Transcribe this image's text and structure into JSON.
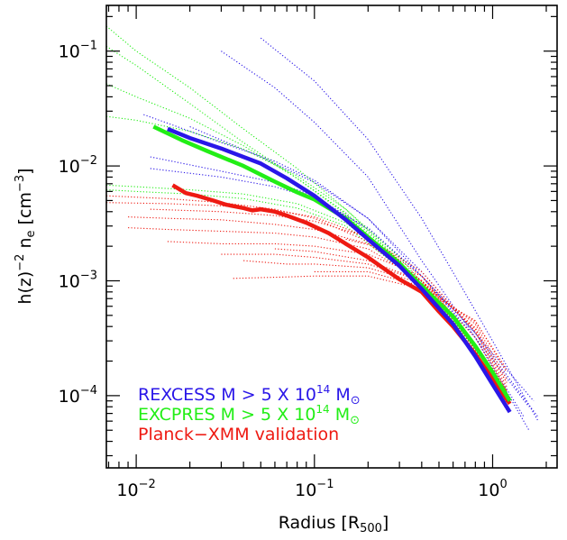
{
  "chart_data": {
    "type": "line",
    "title": "",
    "xlabel": "Radius [R",
    "xlabel_sub": "500",
    "xlabel_close": "]",
    "ylabel_prefix": "h(z)",
    "ylabel_sup": "−2",
    "ylabel_mid": " n",
    "ylabel_sub": "e",
    "ylabel_unit": " [cm",
    "ylabel_unit_sup": "−3",
    "ylabel_close": "]",
    "xscale": "log",
    "yscale": "log",
    "xlim": [
      0.0068,
      2.3
    ],
    "ylim": [
      2.35e-05,
      0.25
    ],
    "grid": false,
    "legend_position": "bottom-left",
    "x_ticks": [
      {
        "value": 0.01,
        "base": "10",
        "exp": "−2"
      },
      {
        "value": 0.1,
        "base": "10",
        "exp": "−1"
      },
      {
        "value": 1,
        "base": "10",
        "exp": "0"
      }
    ],
    "y_ticks": [
      {
        "value": 0.1,
        "base": "10",
        "exp": "−1"
      },
      {
        "value": 0.01,
        "base": "10",
        "exp": "−2"
      },
      {
        "value": 0.001,
        "base": "10",
        "exp": "−3"
      },
      {
        "value": 0.0001,
        "base": "10",
        "exp": "−4"
      }
    ],
    "legend": [
      {
        "label": "REXCESS M > 5 X 10",
        "sup": "14",
        "tail": " M",
        "sym": "⊙",
        "color": "#2a16e8"
      },
      {
        "label": "EXCPRES M > 5 X 10",
        "sup": "14",
        "tail": " M",
        "sym": "⊙",
        "color": "#22ee16"
      },
      {
        "label": "Planck−XMM validation",
        "sup": "",
        "tail": "",
        "sym": "",
        "color": "#ee1a12"
      }
    ],
    "series": [
      {
        "name": "REXCESS M > 5 X 10^14 M⊙",
        "color": "#2a16e8",
        "style": "solid",
        "x": [
          0.015,
          0.02,
          0.03,
          0.05,
          0.07,
          0.1,
          0.15,
          0.2,
          0.3,
          0.4,
          0.6,
          0.8,
          1.0,
          1.25
        ],
        "y": [
          0.021,
          0.0175,
          0.0142,
          0.0105,
          0.0078,
          0.0055,
          0.0034,
          0.0023,
          0.00135,
          0.00085,
          0.00042,
          0.00022,
          0.000125,
          7.2e-05
        ]
      },
      {
        "name": "EXCPRES M > 5 X 10^14 M⊙",
        "color": "#22ee16",
        "style": "solid",
        "x": [
          0.0125,
          0.018,
          0.025,
          0.04,
          0.06,
          0.08,
          0.1,
          0.15,
          0.2,
          0.3,
          0.4,
          0.6,
          0.8,
          1.0,
          1.25
        ],
        "y": [
          0.022,
          0.0168,
          0.0135,
          0.01,
          0.0073,
          0.0059,
          0.0051,
          0.0035,
          0.0024,
          0.00142,
          0.0009,
          0.00049,
          0.00027,
          0.00016,
          9e-05
        ]
      },
      {
        "name": "Planck−XMM validation",
        "color": "#ee1a12",
        "style": "solid",
        "x": [
          0.016,
          0.019,
          0.022,
          0.027,
          0.032,
          0.04,
          0.045,
          0.05,
          0.06,
          0.07,
          0.09,
          0.12,
          0.15,
          0.2,
          0.25,
          0.3,
          0.35,
          0.4,
          0.5,
          0.6,
          0.8,
          1.0,
          1.25
        ],
        "y": [
          0.0068,
          0.0058,
          0.0055,
          0.005,
          0.0046,
          0.0043,
          0.0041,
          0.0042,
          0.004,
          0.0037,
          0.0032,
          0.0026,
          0.0021,
          0.0016,
          0.00125,
          0.00103,
          0.0009,
          0.0008,
          0.00054,
          0.0004,
          0.00023,
          0.00014,
          8.5e-05
        ]
      }
    ],
    "individual_profiles": [
      {
        "color": "#2a16e8",
        "x": [
          0.011,
          0.03,
          0.06,
          0.1,
          0.2,
          0.4,
          0.8,
          1.6
        ],
        "y": [
          0.028,
          0.016,
          0.011,
          0.0075,
          0.0035,
          0.0011,
          0.00032,
          8e-05
        ]
      },
      {
        "color": "#2a16e8",
        "x": [
          0.03,
          0.06,
          0.1,
          0.2,
          0.4,
          0.8,
          1.5
        ],
        "y": [
          0.1,
          0.048,
          0.024,
          0.008,
          0.0015,
          0.00032,
          6.5e-05
        ]
      },
      {
        "color": "#2a16e8",
        "x": [
          0.012,
          0.03,
          0.06,
          0.1,
          0.2,
          0.4,
          0.8,
          1.8
        ],
        "y": [
          0.012,
          0.009,
          0.0072,
          0.0055,
          0.0028,
          0.0011,
          0.00035,
          6.5e-05
        ]
      },
      {
        "color": "#2a16e8",
        "x": [
          0.012,
          0.03,
          0.06,
          0.1,
          0.2,
          0.4,
          0.8,
          1.6
        ],
        "y": [
          0.0095,
          0.008,
          0.0066,
          0.0052,
          0.0029,
          0.0011,
          0.00032,
          5e-05
        ]
      },
      {
        "color": "#2a16e8",
        "x": [
          0.05,
          0.1,
          0.2,
          0.4,
          0.8,
          1.8
        ],
        "y": [
          0.13,
          0.055,
          0.017,
          0.0035,
          0.00055,
          6e-05
        ]
      },
      {
        "color": "#2a16e8",
        "x": [
          0.02,
          0.05,
          0.1,
          0.2,
          0.4,
          0.8,
          1.7
        ],
        "y": [
          0.022,
          0.012,
          0.0072,
          0.0035,
          0.0012,
          0.00035,
          9e-05
        ]
      },
      {
        "color": "#22ee16",
        "x": [
          0.0068,
          0.01,
          0.02,
          0.04,
          0.08,
          0.15,
          0.3,
          0.6,
          1.2
        ],
        "y": [
          0.165,
          0.1,
          0.048,
          0.021,
          0.0095,
          0.0042,
          0.0015,
          0.00045,
          0.00011
        ]
      },
      {
        "color": "#22ee16",
        "x": [
          0.0068,
          0.01,
          0.02,
          0.04,
          0.08,
          0.15,
          0.3,
          0.6,
          1.2
        ],
        "y": [
          0.11,
          0.075,
          0.035,
          0.016,
          0.0078,
          0.0038,
          0.0014,
          0.00042,
          0.0001
        ]
      },
      {
        "color": "#22ee16",
        "x": [
          0.0068,
          0.01,
          0.02,
          0.04,
          0.08,
          0.15,
          0.3,
          0.6,
          1.2
        ],
        "y": [
          0.052,
          0.04,
          0.026,
          0.015,
          0.0078,
          0.0039,
          0.0015,
          0.00046,
          0.00011
        ]
      },
      {
        "color": "#22ee16",
        "x": [
          0.0068,
          0.01,
          0.02,
          0.04,
          0.08,
          0.15,
          0.3,
          0.6,
          1.2
        ],
        "y": [
          0.027,
          0.025,
          0.02,
          0.014,
          0.0082,
          0.0042,
          0.0016,
          0.00048,
          0.00011
        ]
      },
      {
        "color": "#22ee16",
        "x": [
          0.0068,
          0.01,
          0.02,
          0.04,
          0.08,
          0.15,
          0.3,
          0.6,
          1.2
        ],
        "y": [
          0.0068,
          0.0066,
          0.0062,
          0.0057,
          0.0047,
          0.0032,
          0.0014,
          0.00046,
          0.00011
        ]
      },
      {
        "color": "#22ee16",
        "x": [
          0.0068,
          0.01,
          0.02,
          0.04,
          0.08,
          0.15,
          0.3,
          0.6,
          1.2
        ],
        "y": [
          0.0062,
          0.006,
          0.0057,
          0.0052,
          0.0043,
          0.003,
          0.0013,
          0.00044,
          0.0001
        ]
      },
      {
        "color": "#ee1a12",
        "x": [
          0.0068,
          0.015,
          0.03,
          0.06,
          0.1,
          0.2,
          0.4,
          0.8,
          1.2
        ],
        "y": [
          0.0055,
          0.0052,
          0.0048,
          0.0042,
          0.0035,
          0.0022,
          0.0009,
          0.00022,
          7.5e-05
        ]
      },
      {
        "color": "#ee1a12",
        "x": [
          0.0068,
          0.015,
          0.03,
          0.06,
          0.1,
          0.2,
          0.4,
          0.8,
          1.2
        ],
        "y": [
          0.0048,
          0.0047,
          0.0045,
          0.0041,
          0.0036,
          0.0024,
          0.001,
          0.00025,
          8e-05
        ]
      },
      {
        "color": "#ee1a12",
        "x": [
          0.009,
          0.015,
          0.03,
          0.06,
          0.1,
          0.2,
          0.4,
          0.8,
          1.2
        ],
        "y": [
          0.0036,
          0.0035,
          0.0034,
          0.0031,
          0.0028,
          0.0021,
          0.001,
          0.00028,
          0.0001
        ]
      },
      {
        "color": "#ee1a12",
        "x": [
          0.009,
          0.015,
          0.03,
          0.06,
          0.1,
          0.2,
          0.4,
          0.8,
          1.2
        ],
        "y": [
          0.0029,
          0.0028,
          0.0027,
          0.0026,
          0.0024,
          0.0019,
          0.001,
          0.00032,
          0.00011
        ]
      },
      {
        "color": "#ee1a12",
        "x": [
          0.015,
          0.03,
          0.06,
          0.1,
          0.2,
          0.4,
          0.8,
          1.2
        ],
        "y": [
          0.0022,
          0.0021,
          0.0021,
          0.002,
          0.0017,
          0.0011,
          0.00036,
          0.00012
        ]
      },
      {
        "color": "#ee1a12",
        "x": [
          0.03,
          0.06,
          0.1,
          0.2,
          0.4,
          0.8,
          1.2
        ],
        "y": [
          0.0017,
          0.0017,
          0.0016,
          0.0014,
          0.001,
          0.00038,
          0.00013
        ]
      },
      {
        "color": "#ee1a12",
        "x": [
          0.04,
          0.07,
          0.1,
          0.2,
          0.4,
          0.8,
          1.2
        ],
        "y": [
          0.0015,
          0.0014,
          0.0014,
          0.0013,
          0.00095,
          0.00042,
          0.00014
        ]
      },
      {
        "color": "#ee1a12",
        "x": [
          0.035,
          0.07,
          0.1,
          0.2,
          0.4,
          0.8,
          1.2
        ],
        "y": [
          0.00105,
          0.00108,
          0.0011,
          0.0011,
          0.00085,
          0.00045,
          0.00016
        ]
      },
      {
        "color": "#ee1a12",
        "x": [
          0.06,
          0.1,
          0.2,
          0.4,
          0.8,
          1.2
        ],
        "y": [
          0.0019,
          0.0018,
          0.0015,
          0.001,
          0.00039,
          0.00013
        ]
      },
      {
        "color": "#ee1a12",
        "x": [
          0.1,
          0.2,
          0.4,
          0.8,
          1.2
        ],
        "y": [
          0.0012,
          0.0012,
          0.0009,
          0.00044,
          0.00017
        ]
      },
      {
        "color": "#ee1a12",
        "x": [
          0.15,
          0.25,
          0.4,
          0.8,
          1.2
        ],
        "y": [
          0.0023,
          0.0019,
          0.0012,
          0.00036,
          0.00011
        ]
      },
      {
        "color": "#ee1a12",
        "x": [
          0.012,
          0.03,
          0.06,
          0.1,
          0.2,
          0.4,
          0.8,
          1.2
        ],
        "y": [
          0.0042,
          0.004,
          0.0037,
          0.0033,
          0.0024,
          0.0011,
          0.00028,
          8.5e-05
        ]
      }
    ]
  }
}
